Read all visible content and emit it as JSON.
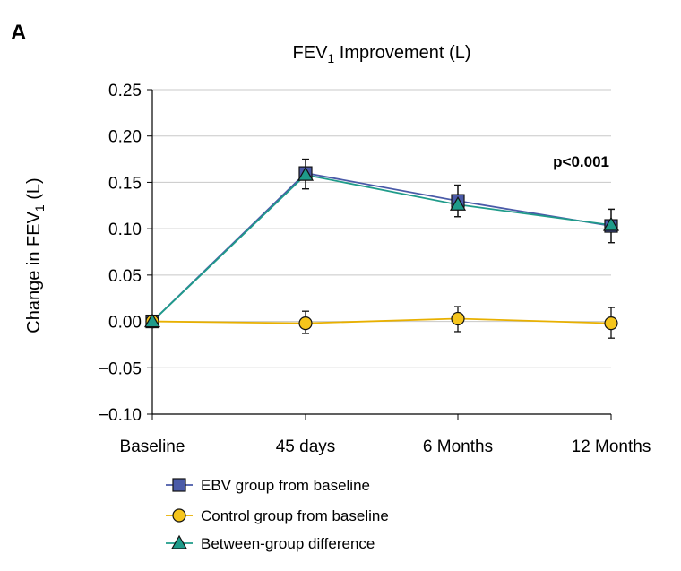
{
  "chart_data": {
    "type": "line",
    "panel_label": "A",
    "title_main": "FEV",
    "title_sub": "1",
    "title_rest": " Improvement (L)",
    "ylabel_main": "Change in FEV",
    "ylabel_sub": "1",
    "ylabel_rest": " (L)",
    "ylim": [
      -0.1,
      0.25
    ],
    "ytick_labels": [
      "0.25",
      "0.20",
      "0.15",
      "0.10",
      "0.05",
      "0.00",
      "−0.05",
      "−0.10"
    ],
    "categories": [
      "Baseline",
      "45 days",
      "6 Months",
      "12 Months"
    ],
    "annotation": "p<0.001",
    "grid": true,
    "legend_position": "bottom",
    "series": [
      {
        "name": "EBV group from baseline",
        "marker": "square",
        "line_color": "#4a5aa8",
        "marker_fill": "#4a5aa8",
        "values": [
          0.0,
          0.16,
          0.13,
          0.103
        ],
        "err_low": [
          0.0,
          0.143,
          0.113,
          0.085
        ],
        "err_high": [
          0.0,
          0.175,
          0.147,
          0.121
        ]
      },
      {
        "name": "Control group from baseline",
        "marker": "circle",
        "line_color": "#e8b000",
        "marker_fill": "#f5c51c",
        "values": [
          0.0,
          -0.002,
          0.003,
          -0.002
        ],
        "err_low": [
          0.0,
          -0.013,
          -0.011,
          -0.018
        ],
        "err_high": [
          0.0,
          0.011,
          0.016,
          0.015
        ]
      },
      {
        "name": "Between-group difference",
        "marker": "triangle",
        "line_color": "#1f9b8a",
        "marker_fill": "#1f9b8a",
        "values": [
          0.0,
          0.158,
          0.126,
          0.104
        ],
        "err_low": [
          0.0,
          0.143,
          0.113,
          0.085
        ],
        "err_high": [
          0.0,
          0.175,
          0.147,
          0.121
        ]
      }
    ]
  }
}
